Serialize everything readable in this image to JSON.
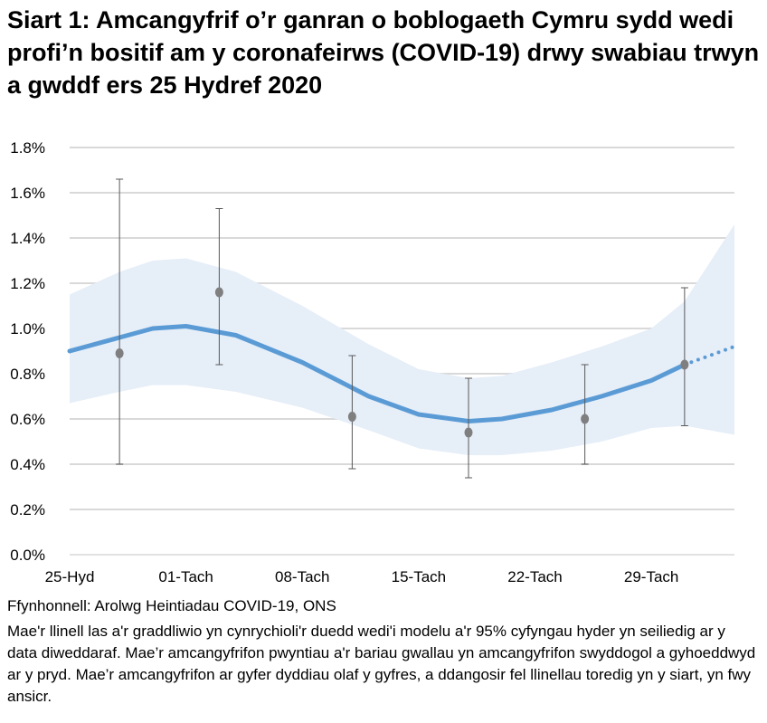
{
  "chart_data": {
    "type": "line",
    "title": "Siart 1: Amcangyfrif o’r ganran o boblogaeth Cymru sydd wedi profi’n bositif am y coronafeirws (COVID-19) drwy swabiau trwyn a gwddf ers 25 Hydref 2020",
    "xlabel": "",
    "ylabel": "",
    "ylim": [
      0,
      1.8
    ],
    "xlim": [
      "2020-10-25",
      "2020-12-04"
    ],
    "y_ticks": [
      "0.0%",
      "0.2%",
      "0.4%",
      "0.6%",
      "0.8%",
      "1.0%",
      "1.2%",
      "1.4%",
      "1.6%",
      "1.8%"
    ],
    "y_tick_values": [
      0,
      0.2,
      0.4,
      0.6,
      0.8,
      1.0,
      1.2,
      1.4,
      1.6,
      1.8
    ],
    "x_ticks": [
      {
        "date": "2020-10-25",
        "label": "25-Hyd"
      },
      {
        "date": "2020-11-01",
        "label": "01-Tach"
      },
      {
        "date": "2020-11-08",
        "label": "08-Tach"
      },
      {
        "date": "2020-11-15",
        "label": "15-Tach"
      },
      {
        "date": "2020-11-22",
        "label": "22-Tach"
      },
      {
        "date": "2020-11-29",
        "label": "29-Tach"
      }
    ],
    "grid": true,
    "colors": {
      "line": "#5b9bd5",
      "band": "#e6eef8",
      "points": "#7f7f7f",
      "grid": "#d9d9d9"
    },
    "modelled": {
      "x": [
        "2020-10-25",
        "2020-10-28",
        "2020-10-30",
        "2020-11-01",
        "2020-11-04",
        "2020-11-08",
        "2020-11-12",
        "2020-11-15",
        "2020-11-18",
        "2020-11-20",
        "2020-11-23",
        "2020-11-26",
        "2020-11-29",
        "2020-12-01",
        "2020-12-04"
      ],
      "y": [
        0.9,
        0.96,
        1.0,
        1.01,
        0.97,
        0.85,
        0.7,
        0.62,
        0.59,
        0.6,
        0.64,
        0.7,
        0.77,
        0.84,
        0.92
      ],
      "lower": [
        0.67,
        0.72,
        0.75,
        0.75,
        0.72,
        0.65,
        0.55,
        0.47,
        0.44,
        0.44,
        0.46,
        0.5,
        0.56,
        0.57,
        0.53
      ],
      "upper": [
        1.15,
        1.25,
        1.3,
        1.31,
        1.25,
        1.1,
        0.93,
        0.82,
        0.78,
        0.79,
        0.85,
        0.92,
        1.0,
        1.12,
        1.46
      ],
      "dotted_from": "2020-12-01"
    },
    "official_estimates": [
      {
        "x": "2020-10-28",
        "y": 0.89,
        "lower": 0.4,
        "upper": 1.66
      },
      {
        "x": "2020-11-03",
        "y": 1.16,
        "lower": 0.84,
        "upper": 1.53
      },
      {
        "x": "2020-11-11",
        "y": 0.61,
        "lower": 0.38,
        "upper": 0.88
      },
      {
        "x": "2020-11-18",
        "y": 0.54,
        "lower": 0.34,
        "upper": 0.78
      },
      {
        "x": "2020-11-25",
        "y": 0.6,
        "lower": 0.4,
        "upper": 0.84
      },
      {
        "x": "2020-12-01",
        "y": 0.84,
        "lower": 0.57,
        "upper": 1.18
      }
    ]
  },
  "source": "Ffynhonnell: Arolwg Heintiadau COVID-19, ONS",
  "note": "Mae'r llinell las a'r graddliwio yn cynrychioli'r duedd wedi'i modelu a'r 95% cyfyngau hyder yn seiliedig ar y data diweddaraf. Mae’r amcangyfrifon pwyntiau a'r bariau gwallau yn amcangyfrifon swyddogol a gyhoeddwyd ar y pryd. Mae’r amcangyfrifon ar gyfer dyddiau olaf y gyfres, a ddangosir fel llinellau toredig yn y siart, yn fwy ansicr."
}
